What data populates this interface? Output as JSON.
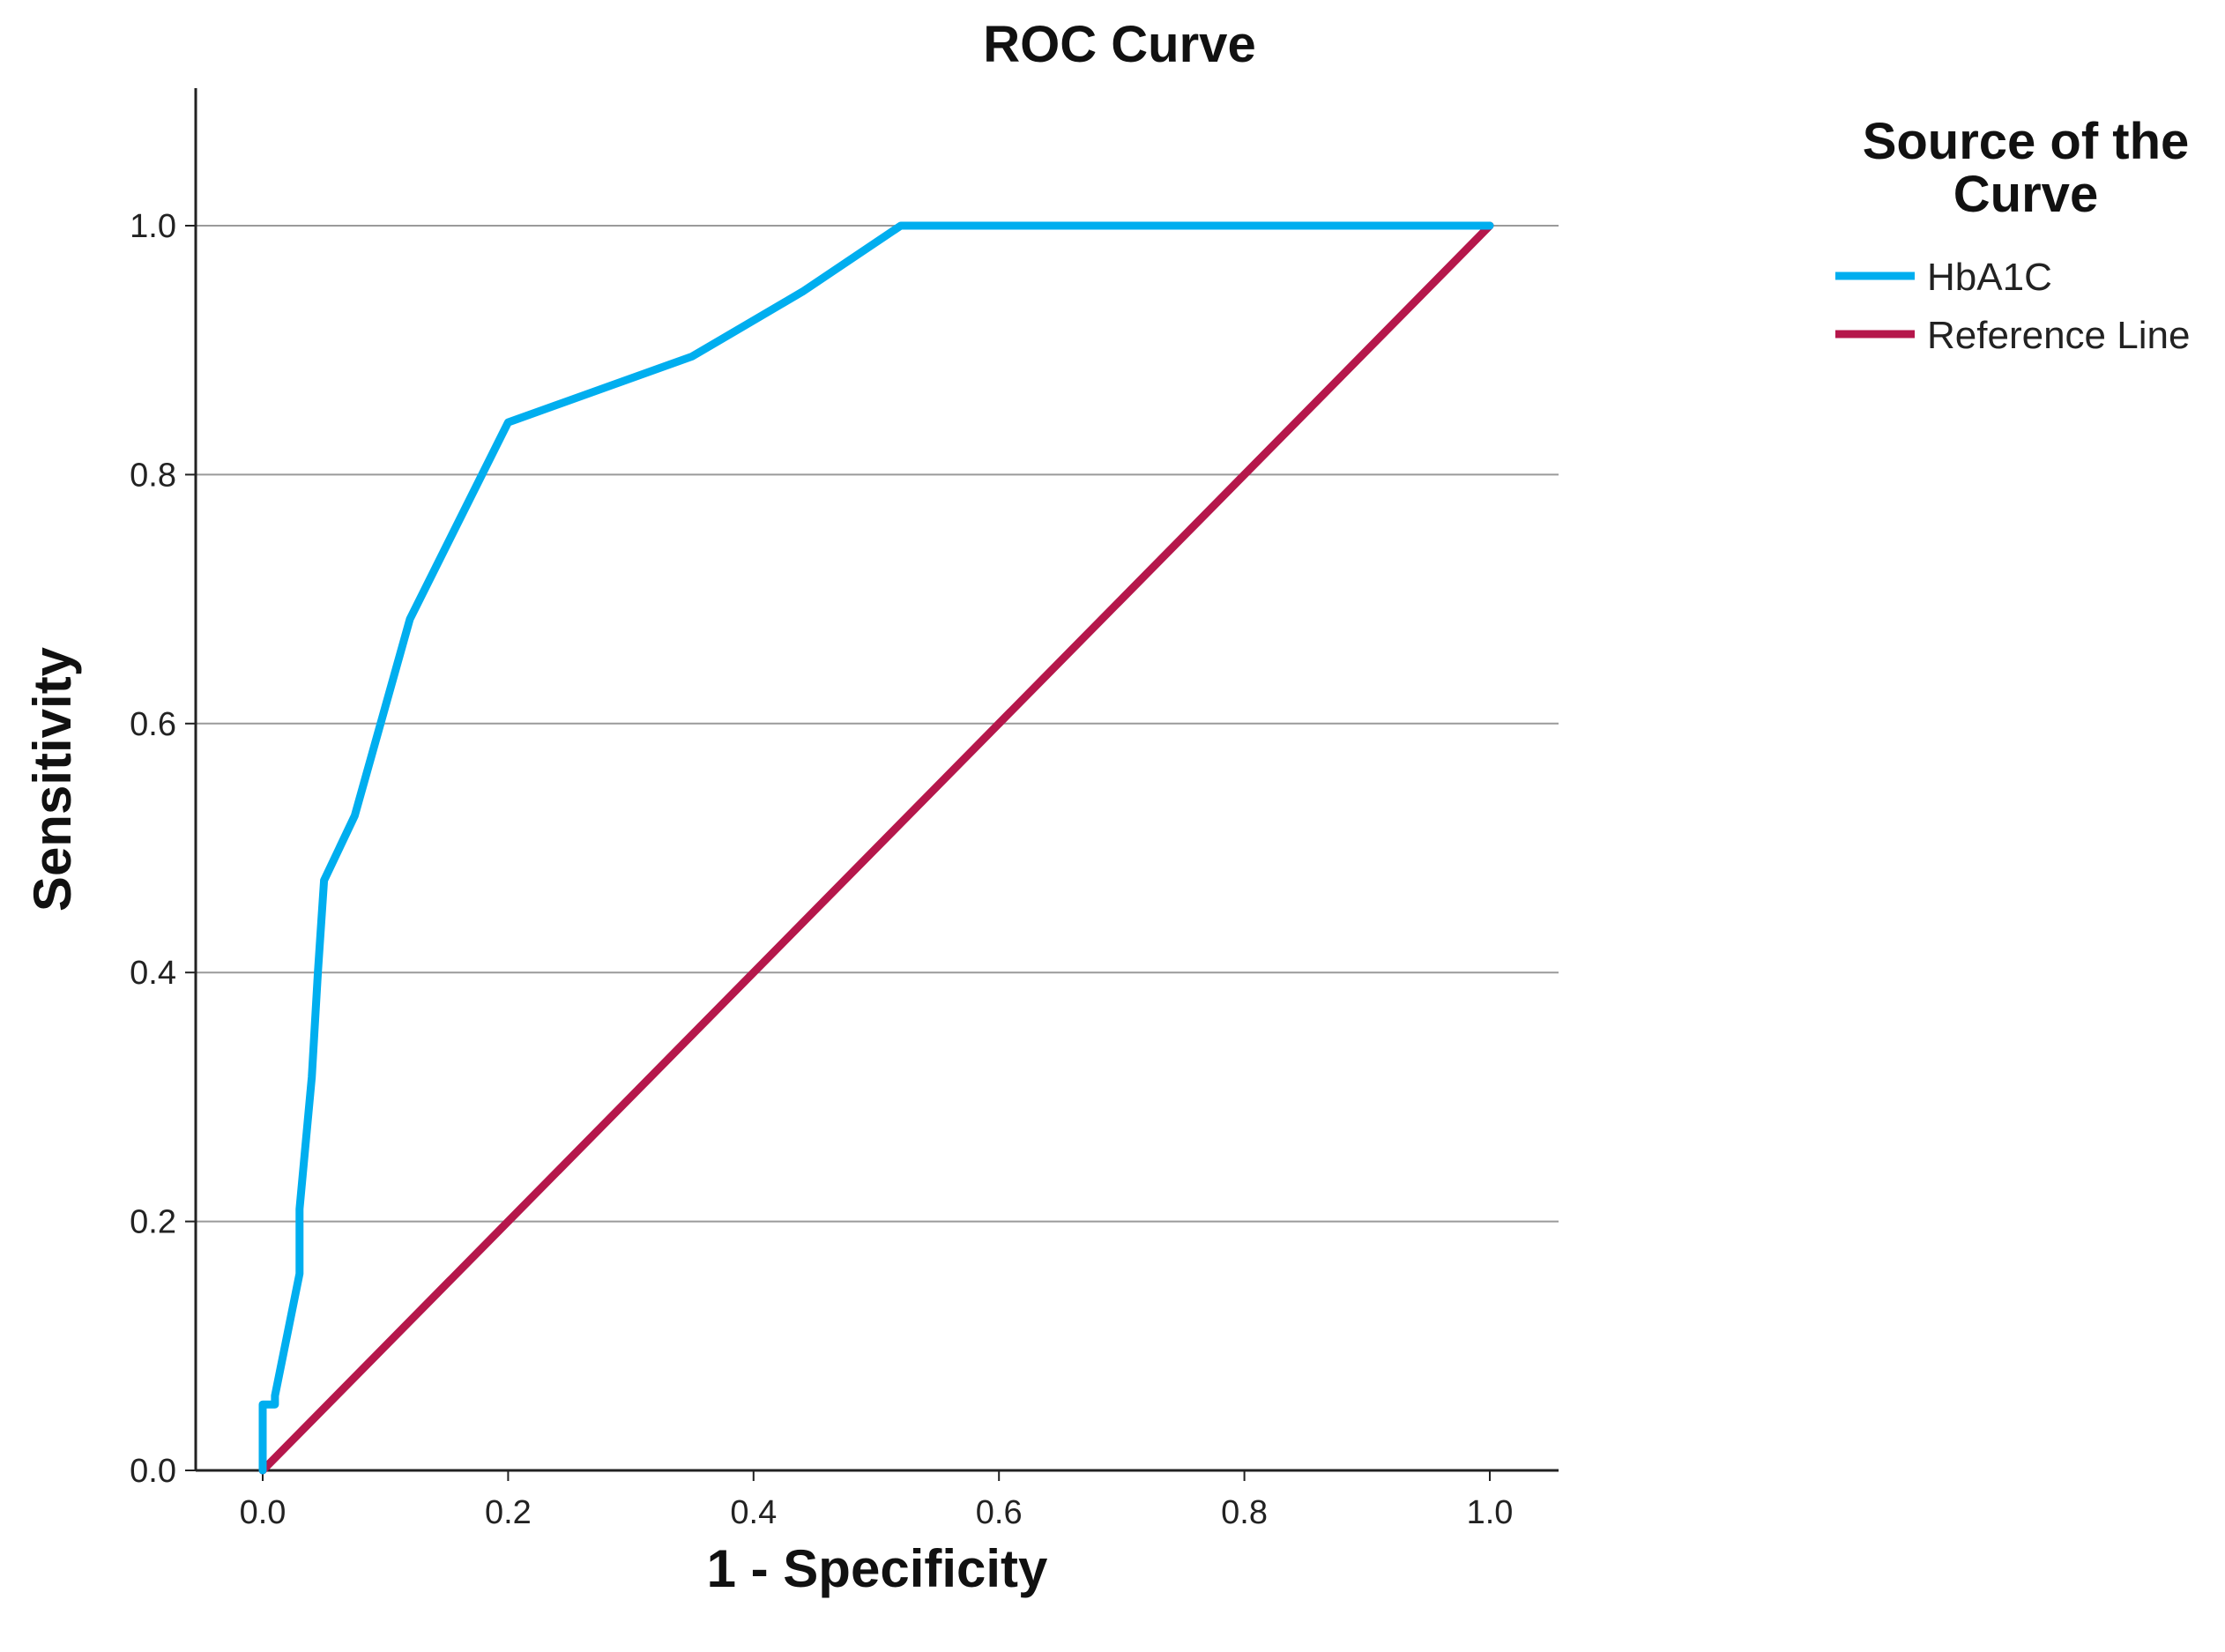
{
  "chart_data": {
    "type": "line",
    "title": "ROC Curve",
    "xlabel": "1 - Specificity",
    "ylabel": "Sensitivity",
    "xlim": [
      0,
      1
    ],
    "ylim": [
      0,
      1
    ],
    "x_ticks": [
      "0.0",
      "0.2",
      "0.4",
      "0.6",
      "0.8",
      "1.0"
    ],
    "y_ticks": [
      "0.0",
      "0.2",
      "0.4",
      "0.6",
      "0.8",
      "1.0"
    ],
    "grid": "horizontal",
    "legend": {
      "title_lines": [
        "Source of the",
        "Curve"
      ],
      "placement": "right"
    },
    "series": [
      {
        "name": "HbA1C",
        "color": "#00AEEF",
        "x": [
          0.0,
          0.0,
          0.01,
          0.01,
          0.03,
          0.03,
          0.04,
          0.045,
          0.05,
          0.075,
          0.12,
          0.2,
          0.35,
          0.44,
          0.52,
          1.0
        ],
        "y": [
          0.0,
          0.053,
          0.053,
          0.06,
          0.158,
          0.21,
          0.316,
          0.4,
          0.474,
          0.526,
          0.684,
          0.842,
          0.895,
          0.947,
          1.0,
          1.0
        ]
      },
      {
        "name": "Reference Line",
        "color": "#B5174B",
        "x": [
          0.0,
          1.0
        ],
        "y": [
          0.0,
          1.0
        ]
      }
    ]
  }
}
